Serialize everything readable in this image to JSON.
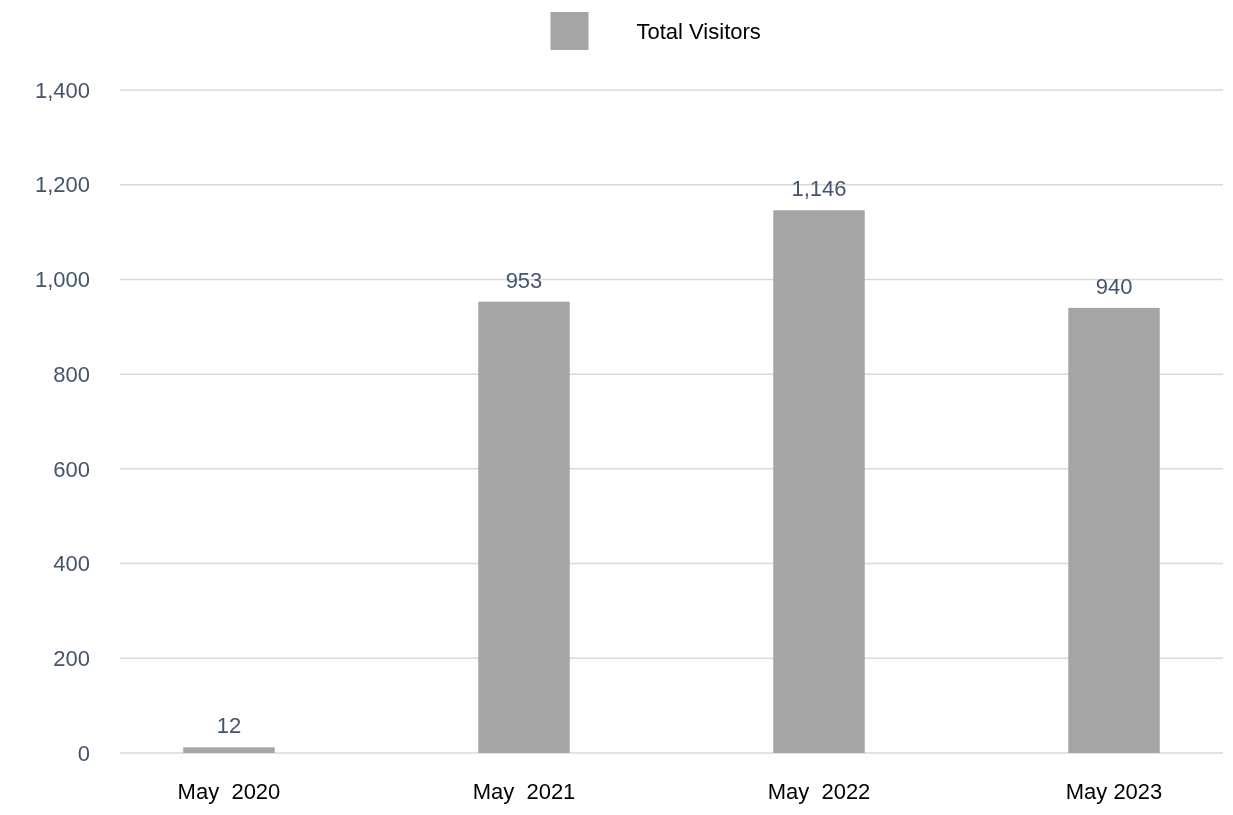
{
  "chart_data": {
    "type": "bar",
    "categories": [
      "May  2020",
      "May  2021",
      "May  2022",
      "May 2023"
    ],
    "series": [
      {
        "name": "Total Visitors",
        "color": "#a5a5a5",
        "values": [
          12,
          953,
          1146,
          940
        ],
        "value_labels": [
          "12",
          "953",
          "1,146",
          "940"
        ]
      }
    ],
    "ylim": [
      0,
      1400
    ],
    "yticks": [
      {
        "value": 0,
        "label": "0"
      },
      {
        "value": 200,
        "label": "200"
      },
      {
        "value": 400,
        "label": "400"
      },
      {
        "value": 600,
        "label": "600"
      },
      {
        "value": 800,
        "label": "800"
      },
      {
        "value": 1000,
        "label": "1,000"
      },
      {
        "value": 1200,
        "label": "1,200"
      },
      {
        "value": 1400,
        "label": "1,400"
      }
    ],
    "grid": "y",
    "legend": "top"
  }
}
